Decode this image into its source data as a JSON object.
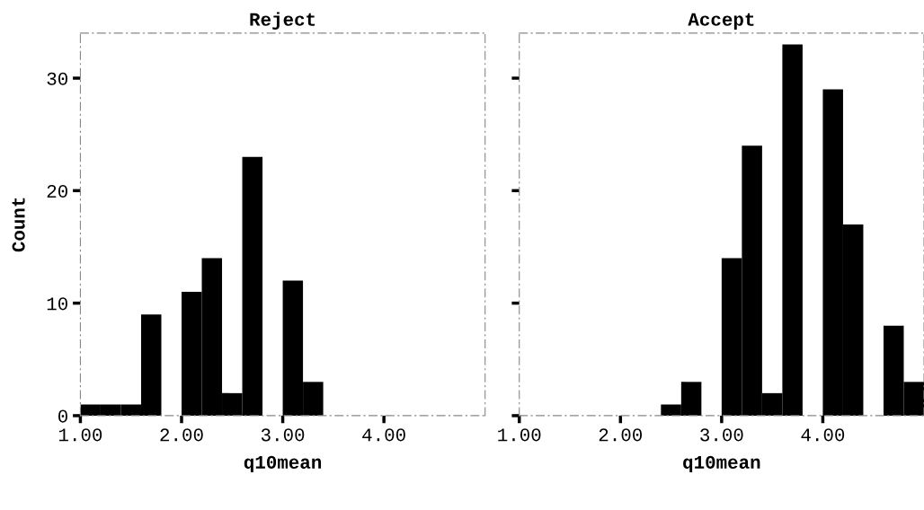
{
  "chart_data": [
    {
      "type": "histogram",
      "title": "Reject",
      "xlabel": "q10mean",
      "ylabel": "Count",
      "color": "#000000",
      "bins": [
        1.0,
        1.2,
        1.4,
        1.6,
        1.8,
        2.0,
        2.2,
        2.4,
        2.6,
        2.8,
        3.0,
        3.2,
        3.4,
        3.6,
        3.8,
        4.0,
        4.2,
        4.4,
        4.6,
        4.8,
        5.0
      ],
      "values": [
        1,
        1,
        1,
        9,
        0,
        11,
        14,
        2,
        23,
        0,
        12,
        3,
        0,
        0,
        0,
        0,
        0,
        0,
        0,
        0
      ],
      "xlim": [
        1.0,
        5.0
      ],
      "ylim": [
        0,
        34
      ],
      "xticks": [
        {
          "value": 1,
          "label": "1.00"
        },
        {
          "value": 2,
          "label": "2.00"
        },
        {
          "value": 3,
          "label": "3.00"
        },
        {
          "value": 4,
          "label": "4.00"
        }
      ],
      "yticks": [
        0,
        10,
        20,
        30
      ],
      "grid": false
    },
    {
      "type": "histogram",
      "title": "Accept",
      "xlabel": "q10mean",
      "color": "#000000",
      "bins": [
        1.0,
        1.2,
        1.4,
        1.6,
        1.8,
        2.0,
        2.2,
        2.4,
        2.6,
        2.8,
        3.0,
        3.2,
        3.4,
        3.6,
        3.8,
        4.0,
        4.2,
        4.4,
        4.6,
        4.8,
        5.0
      ],
      "values": [
        0,
        0,
        0,
        0,
        0,
        0,
        0,
        1,
        3,
        0,
        14,
        24,
        2,
        33,
        0,
        29,
        17,
        0,
        8,
        3
      ],
      "xlim": [
        1.0,
        5.0
      ],
      "ylim": [
        0,
        34
      ],
      "xticks": [
        {
          "value": 1,
          "label": "1.00"
        },
        {
          "value": 2,
          "label": "2.00"
        },
        {
          "value": 3,
          "label": "3.00"
        },
        {
          "value": 4,
          "label": "4.00"
        }
      ],
      "yticks": [
        0,
        10,
        20,
        30
      ],
      "tick_labels": "x",
      "grid": false
    }
  ]
}
